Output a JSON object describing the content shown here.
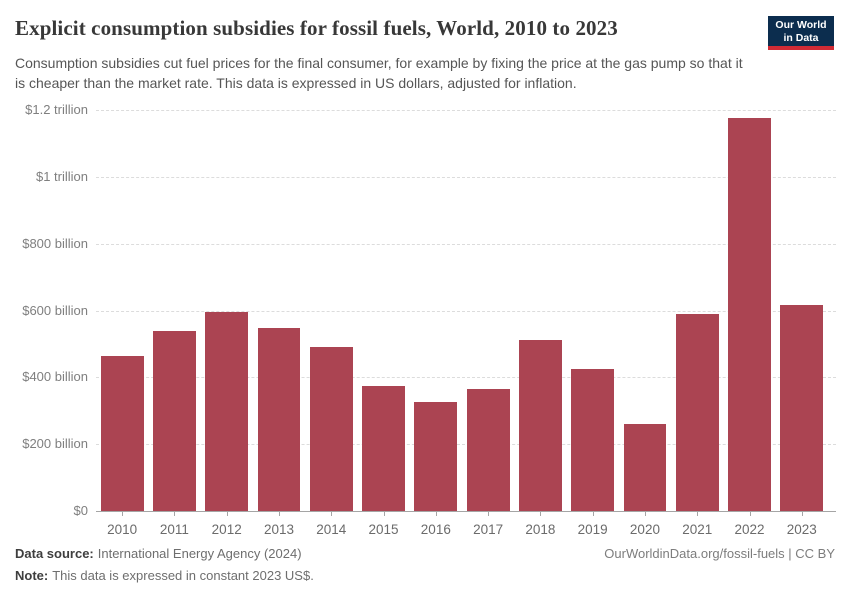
{
  "header": {
    "title": "Explicit consumption subsidies for fossil fuels, World, 2010 to 2023",
    "subtitle": "Consumption subsidies cut fuel prices for the final consumer, for example by fixing the price at the gas pump so that it is cheaper than the market rate. This data is expressed in US dollars, adjusted for inflation.",
    "logo": {
      "line1": "Our World",
      "line2": "in Data"
    }
  },
  "chart_data": {
    "type": "bar",
    "title": "Explicit consumption subsidies for fossil fuels, World, 2010 to 2023",
    "categories": [
      "2010",
      "2011",
      "2012",
      "2013",
      "2014",
      "2015",
      "2016",
      "2017",
      "2018",
      "2019",
      "2020",
      "2021",
      "2022",
      "2023"
    ],
    "values": [
      465,
      540,
      597,
      548,
      490,
      373,
      326,
      366,
      513,
      424,
      260,
      590,
      1177,
      617
    ],
    "unit": "billion US$, constant 2023 US$",
    "xlabel": "",
    "ylabel": "",
    "ylim": [
      0,
      1200
    ],
    "yticks": [
      0,
      200,
      400,
      600,
      800,
      1000,
      1200
    ],
    "ytick_labels": [
      "$0",
      "$200 billion",
      "$400 billion",
      "$600 billion",
      "$800 billion",
      "$1 trillion",
      "$1.2 trillion"
    ],
    "grid": "horizontal-dashed",
    "legend": "none",
    "bar_color": "#ab4452"
  },
  "footer": {
    "datasource_label": "Data source:",
    "datasource_value": "International Energy Agency (2024)",
    "note_label": "Note:",
    "note_value": "This data is expressed in constant 2023 US$.",
    "attribution": "OurWorldinData.org/fossil-fuels | CC BY"
  },
  "colors": {
    "bar": "#ab4452",
    "grid": "#dcdcdc",
    "axis_line": "#a5a5a5",
    "ytick_text": "#7f7f7f",
    "xtick_text": "#6b6b6b",
    "title_text": "#383838",
    "subtitle_text": "#565656",
    "footer_text": "#6e6e6e",
    "footer_label": "#3e3e3e",
    "attribution_text": "#7d7d7d",
    "logo_bg": "#0c2d4e",
    "logo_stripe": "#d12b35"
  }
}
